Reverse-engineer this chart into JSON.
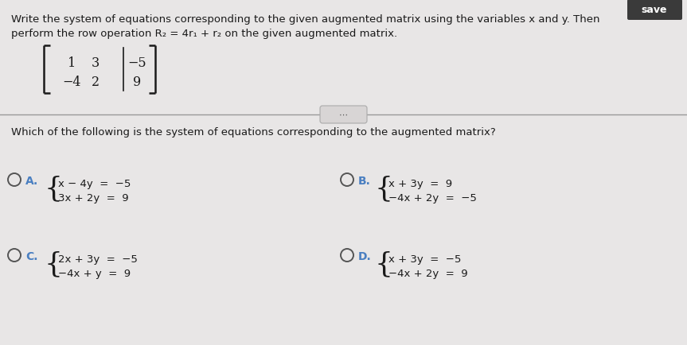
{
  "bg_color": "#e8e6e6",
  "text_color": "#1a1a1a",
  "radio_color": "#555555",
  "label_color": "#4a7fc1",
  "divider_color": "#999999",
  "instruction_line1": "Write the system of equations corresponding to the given augmented matrix using the variables x and y. Then",
  "instruction_line2": "perform the row operation R₂ = 4r₁ + r₂ on the given augmented matrix.",
  "matrix": [
    [
      "1",
      "3",
      "−5"
    ],
    [
      "−4",
      "2",
      "9"
    ]
  ],
  "question": "Which of the following is the system of equations corresponding to the augmented matrix?",
  "opt_A_l1": "x − 4y  =  −5",
  "opt_A_l2": "3x + 2y  =  9",
  "opt_B_l1": "x + 3y  =  9",
  "opt_B_l2": "−4x + 2y  =  −5",
  "opt_C_l1": "2x + 3y  =  −5",
  "opt_C_l2": "−4x + y  =  9",
  "opt_D_l1": "x + 3y  =  −5",
  "opt_D_l2": "−4x + 2y  =  9"
}
